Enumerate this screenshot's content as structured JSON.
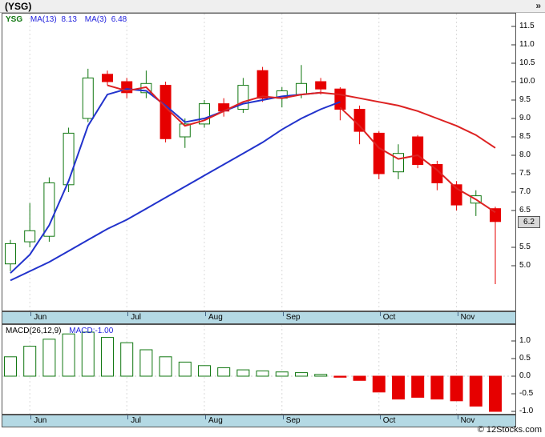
{
  "page": {
    "title": "(YSG)",
    "nav_arrow": "»",
    "credit": "© 12Stocks.com"
  },
  "colors": {
    "up": "#117711",
    "down": "#e60000",
    "ma_blue": "#2233cc",
    "ma_red": "#dd2222",
    "band": "#b4d9e4",
    "grid": "#d9d9d9",
    "tick": "#333333"
  },
  "months": [
    "Jun",
    "Jul",
    "Aug",
    "Sep",
    "Oct",
    "Nov"
  ],
  "month_week_index": [
    1,
    6,
    10,
    14,
    19,
    23
  ],
  "chart_data": [
    {
      "type": "candlestick",
      "symbol": "YSG",
      "timeframe": "weekly",
      "legend": {
        "symbol": "YSG",
        "items": [
          {
            "label": "MA(13)",
            "value": "8.13"
          },
          {
            "label": "MA(3)",
            "value": "6.48"
          }
        ]
      },
      "y_axis": {
        "ticks": [
          {
            "label": "11.5",
            "value": 11.5
          },
          {
            "label": "11.0",
            "value": 11.0
          },
          {
            "label": "10.5",
            "value": 10.5
          },
          {
            "label": "10.0",
            "value": 10.0
          },
          {
            "label": "9.5",
            "value": 9.5
          },
          {
            "label": "9.0",
            "value": 9.0
          },
          {
            "label": "8.5",
            "value": 8.5
          },
          {
            "label": "8.0",
            "value": 8.0
          },
          {
            "label": "7.5",
            "value": 7.5
          },
          {
            "label": "7.0",
            "value": 7.0
          },
          {
            "label": "6.5",
            "value": 6.5
          },
          {
            "label": "5.5",
            "value": 5.5
          },
          {
            "label": "5.0",
            "value": 5.0
          }
        ],
        "last_price": {
          "label": "6.2",
          "value": 6.2
        },
        "range": [
          3.8,
          11.7
        ]
      },
      "candles_ohlc": [
        [
          5.05,
          5.7,
          4.85,
          5.6
        ],
        [
          5.65,
          6.7,
          5.5,
          5.95
        ],
        [
          5.8,
          7.4,
          5.65,
          7.25
        ],
        [
          7.2,
          8.75,
          7.0,
          8.6
        ],
        [
          9.0,
          10.35,
          8.9,
          10.1
        ],
        [
          10.2,
          10.3,
          9.9,
          10.0
        ],
        [
          10.0,
          10.1,
          9.55,
          9.7
        ],
        [
          9.7,
          10.3,
          9.55,
          9.95
        ],
        [
          9.9,
          10.0,
          8.35,
          8.45
        ],
        [
          8.5,
          9.0,
          8.2,
          8.85
        ],
        [
          8.85,
          9.5,
          8.75,
          9.4
        ],
        [
          9.4,
          9.55,
          9.05,
          9.2
        ],
        [
          9.25,
          10.1,
          9.15,
          9.9
        ],
        [
          10.3,
          10.4,
          9.45,
          9.55
        ],
        [
          9.55,
          9.85,
          9.3,
          9.75
        ],
        [
          9.65,
          10.45,
          9.55,
          9.95
        ],
        [
          10.0,
          10.1,
          9.65,
          9.8
        ],
        [
          9.8,
          9.85,
          8.95,
          9.25
        ],
        [
          9.25,
          9.35,
          8.3,
          8.65
        ],
        [
          8.6,
          8.65,
          7.35,
          7.5
        ],
        [
          7.55,
          8.3,
          7.35,
          8.05
        ],
        [
          8.5,
          8.55,
          7.65,
          7.75
        ],
        [
          7.75,
          7.85,
          7.05,
          7.25
        ],
        [
          7.2,
          7.3,
          6.5,
          6.65
        ],
        [
          6.7,
          7.05,
          6.35,
          6.9
        ],
        [
          6.55,
          6.6,
          4.5,
          6.2
        ]
      ],
      "overlays": [
        {
          "name": "ma-fast-early-blue",
          "color_key": "ma_blue",
          "start_index": 0,
          "values": [
            4.8,
            5.3,
            6.1,
            7.3,
            8.8,
            9.65,
            9.8,
            9.75,
            9.35,
            8.9,
            9.0,
            9.2,
            9.4,
            9.5,
            9.6,
            9.65,
            9.7
          ]
        },
        {
          "name": "ma-slow-early-blue",
          "color_key": "ma_blue",
          "start_index": 0,
          "values": [
            4.6,
            4.85,
            5.1,
            5.4,
            5.7,
            6.0,
            6.25,
            6.55,
            6.85,
            7.15,
            7.45,
            7.75,
            8.05,
            8.35,
            8.7,
            9.0,
            9.25,
            9.45
          ]
        },
        {
          "name": "ma13-red",
          "color_key": "ma_red",
          "start_index": 5,
          "values": [
            9.9,
            9.75,
            9.85,
            9.3,
            8.8,
            8.95,
            9.2,
            9.45,
            9.6,
            9.55,
            9.65,
            9.7,
            9.65,
            9.55,
            9.45,
            9.35,
            9.2,
            9.0,
            8.8,
            8.55,
            8.2
          ]
        },
        {
          "name": "ma3-tail-red",
          "color_key": "ma_red",
          "start_index": 17,
          "values": [
            9.3,
            8.8,
            8.2,
            7.9,
            8.0,
            7.6,
            7.1,
            6.8,
            6.45
          ]
        }
      ]
    },
    {
      "type": "bar",
      "title": "MACD",
      "legend": {
        "label": "MACD(26,12,9)",
        "value_label": "MACD:-1.00"
      },
      "y_axis": {
        "ticks": [
          {
            "label": "1.0",
            "value": 1.0
          },
          {
            "label": "0.5",
            "value": 0.5
          },
          {
            "label": "0.0",
            "value": 0.0
          },
          {
            "label": "-0.5",
            "value": -0.5
          },
          {
            "label": "-1.0",
            "value": -1.0
          }
        ],
        "range": [
          -1.05,
          1.45
        ]
      },
      "values": [
        0.55,
        0.85,
        1.05,
        1.2,
        1.25,
        1.1,
        0.95,
        0.75,
        0.55,
        0.4,
        0.3,
        0.24,
        0.18,
        0.15,
        0.12,
        0.1,
        0.05,
        -0.03,
        -0.12,
        -0.45,
        -0.65,
        -0.6,
        -0.65,
        -0.7,
        -0.85,
        -1.0
      ]
    }
  ]
}
